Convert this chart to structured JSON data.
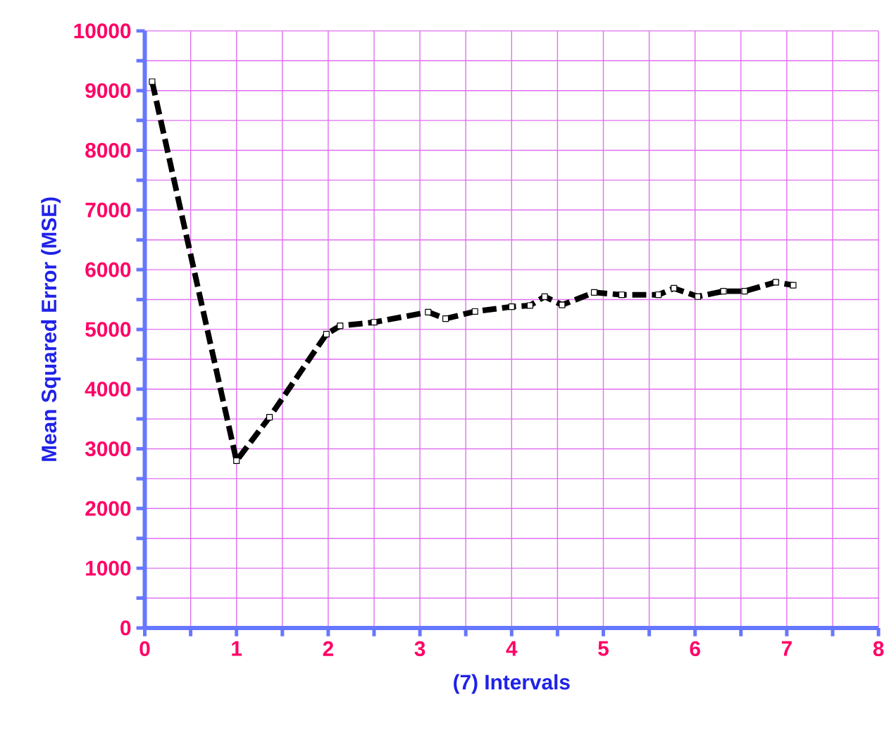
{
  "chart_data": {
    "type": "line",
    "xlabel": "(7) Intervals",
    "ylabel": "Mean Squared Error (MSE)",
    "x": [
      0.08,
      1.0,
      1.36,
      1.98,
      2.13,
      2.5,
      3.09,
      3.28,
      3.6,
      4.0,
      4.2,
      4.36,
      4.55,
      4.9,
      5.2,
      5.6,
      5.77,
      6.03,
      6.31,
      6.54,
      6.88,
      7.07
    ],
    "series": [
      {
        "color": "#000000",
        "values": [
          9150,
          2800,
          3530,
          4920,
          5060,
          5120,
          5290,
          5180,
          5300,
          5380,
          5400,
          5550,
          5410,
          5620,
          5580,
          5580,
          5690,
          5550,
          5640,
          5640,
          5790,
          5740
        ]
      }
    ],
    "xlim": [
      0,
      8
    ],
    "xticks": [
      0,
      {
        "value": 0.5,
        "label": null
      },
      1,
      {
        "value": 1.5,
        "label": null
      },
      2,
      {
        "value": 2.5,
        "label": null
      },
      3,
      {
        "value": 3.5,
        "label": null
      },
      4,
      {
        "value": 4.5,
        "label": null
      },
      5,
      {
        "value": 5.5,
        "label": null
      },
      6,
      {
        "value": 6.5,
        "label": null
      },
      7,
      {
        "value": 7.5,
        "label": null
      },
      8
    ],
    "ylim": [
      0,
      10000
    ],
    "yticks": [
      0,
      {
        "value": 500,
        "label": null
      },
      1000,
      {
        "value": 1500,
        "label": null
      },
      2000,
      {
        "value": 2500,
        "label": null
      },
      3000,
      {
        "value": 3500,
        "label": null
      },
      4000,
      {
        "value": 4500,
        "label": null
      },
      5000,
      {
        "value": 5500,
        "label": null
      },
      6000,
      {
        "value": 6500,
        "label": null
      },
      7000,
      {
        "value": 7500,
        "label": null
      },
      8000,
      {
        "value": 8500,
        "label": null
      },
      9000,
      {
        "value": 9500,
        "label": null
      },
      10000
    ],
    "grid": true,
    "marker": "square",
    "line_style": "dashed"
  }
}
